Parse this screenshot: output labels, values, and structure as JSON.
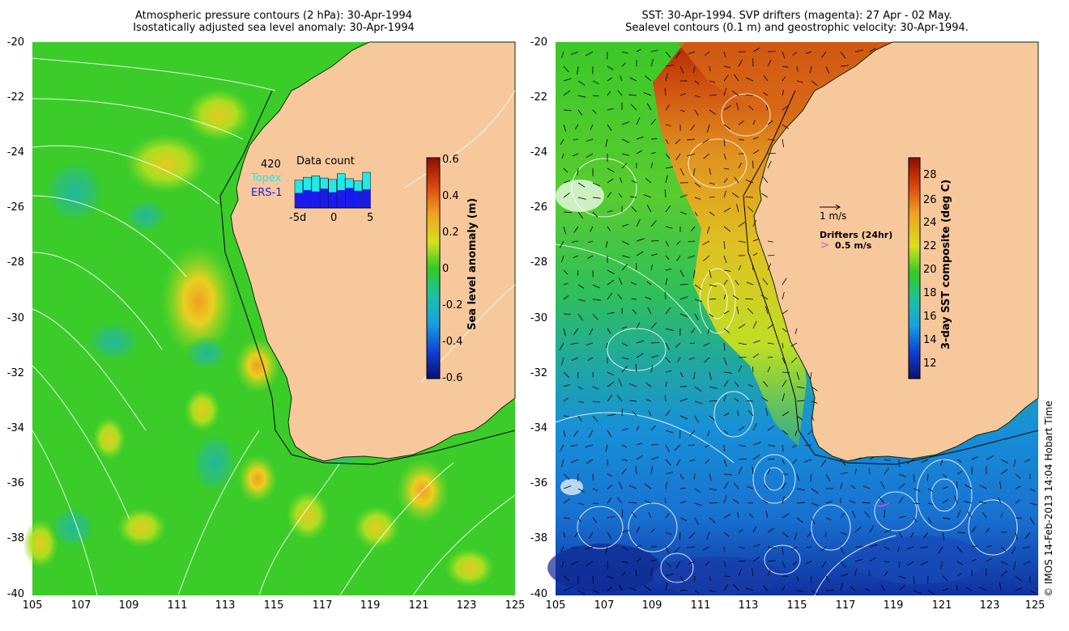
{
  "left_panel": {
    "title_line1": "Atmospheric pressure contours (2 hPa): 30-Apr-1994",
    "title_line2": "Isostatically adjusted sea level anomaly: 30-Apr-1994",
    "colorbar_label": "Sea level anomaly (m)",
    "colorbar_ticks": [
      "0.6",
      "0.4",
      "0.2",
      "0",
      "-0.2",
      "-0.4",
      "-0.6"
    ],
    "inset": {
      "count": "420",
      "title": "Data count",
      "series1_label": "Topex",
      "series2_label": "ERS-1",
      "x_ticks": [
        "-5d",
        "0",
        "5"
      ],
      "series1_color": "#22e8e8",
      "series2_color": "#1a1aee",
      "topex_values": [
        0.78,
        0.86,
        0.9,
        0.84,
        0.8,
        0.96,
        0.82,
        0.76,
        1.0
      ],
      "ers_values": [
        0.42,
        0.5,
        0.46,
        0.54,
        0.44,
        0.5,
        0.56,
        0.48,
        0.52
      ]
    }
  },
  "right_panel": {
    "title_line1": "SST: 30-Apr-1994. SVP drifters (magenta): 27 Apr - 02 May.",
    "title_line2": "Sealevel contours (0.1 m) and geostrophic velocity: 30-Apr-1994.",
    "colorbar_label": "3-day SST composite (deg C)",
    "colorbar_ticks": [
      "28",
      "26",
      "24",
      "22",
      "20",
      "18",
      "16",
      "14",
      "12"
    ],
    "velocity_scale_label": "1 m/s",
    "drifters_label": "Drifters (24hr)",
    "drifter_scale_label": "0.5 m/s",
    "drifter_color": "#e040e0"
  },
  "y_ticks": [
    "-20",
    "-22",
    "-24",
    "-26",
    "-28",
    "-30",
    "-32",
    "-34",
    "-36",
    "-38",
    "-40"
  ],
  "x_ticks": [
    "105",
    "107",
    "109",
    "111",
    "113",
    "115",
    "117",
    "119",
    "121",
    "123",
    "125"
  ],
  "credit": "© IMOS 14-Feb-2013 14:04 Hobart Time",
  "colors": {
    "land": "#f7c89c",
    "ocean_green": "#33cc22",
    "warm": "#e8a020",
    "hot": "#b82000",
    "cool": "#1890d8",
    "cold": "#1030a0"
  }
}
